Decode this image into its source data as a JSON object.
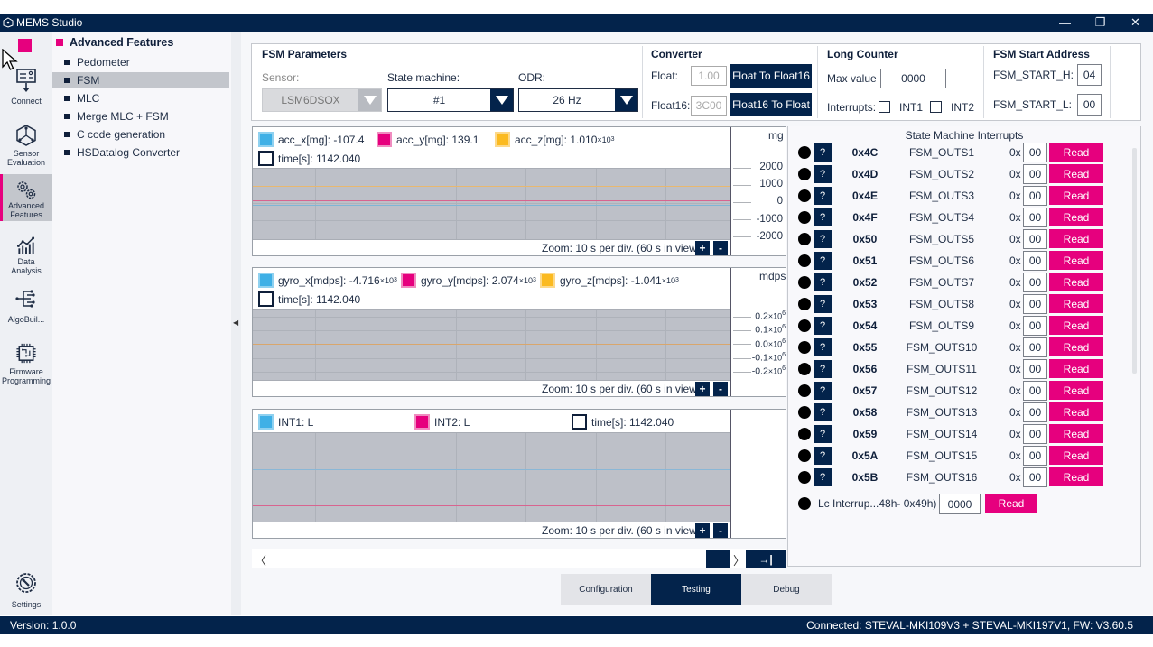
{
  "window": {
    "title": "MEMS Studio",
    "controls": {
      "minimize": "—",
      "restore": "❐",
      "close": "✕"
    }
  },
  "leftnav": {
    "items": [
      {
        "label": "Connect",
        "icon": "connect-icon"
      },
      {
        "label": "Sensor\nEvaluation",
        "label1": "Sensor",
        "label2": "Evaluation",
        "icon": "sensor-evaluation-icon"
      },
      {
        "label1": "Advanced",
        "label2": "Features",
        "icon": "advanced-features-icon",
        "active": true
      },
      {
        "label1": "Data",
        "label2": "Analysis",
        "icon": "data-analysis-icon"
      },
      {
        "label1": "AlgoBuil...",
        "icon": "algobuilder-icon"
      },
      {
        "label1": "Firmware",
        "label2": "Programming",
        "icon": "firmware-icon"
      },
      {
        "label1": "Settings",
        "icon": "settings-icon"
      }
    ]
  },
  "submenu": {
    "title": "Advanced Features",
    "items": [
      "Pedometer",
      "FSM",
      "MLC",
      "Merge MLC + FSM",
      "C code generation",
      "HSDatalog Converter"
    ],
    "selected": "FSM"
  },
  "fsm_parameters": {
    "title": "FSM Parameters",
    "sensor_label": "Sensor:",
    "sensor_value": "LSM6DSOX",
    "state_machine_label": "State machine:",
    "state_machine_value": "#1",
    "odr_label": "ODR:",
    "odr_value": "26 Hz"
  },
  "converter": {
    "title": "Converter",
    "float_label": "Float:",
    "float_value": "1.00",
    "float_to_f16_btn": "Float To Float16",
    "float16_label": "Float16:",
    "float16_value": "3C00",
    "f16_to_float_btn": "Float16 To Float"
  },
  "long_counter": {
    "title": "Long Counter",
    "max_label": "Max value",
    "max_value": "0000",
    "interrupts_label": "Interrupts:",
    "int1_label": "INT1",
    "int2_label": "INT2"
  },
  "fsm_start": {
    "title": "FSM Start Address",
    "h_label": "FSM_START_H:",
    "h_value": "04",
    "l_label": "FSM_START_L:",
    "l_value": "00"
  },
  "plots": {
    "acc": {
      "x_label": "acc_x[mg]: -107.4",
      "y_label": "acc_y[mg]: 139.1",
      "z_label_base": "acc_z[mg]: 1.010",
      "z_label_exp": "3",
      "time_label": "time[s]: 1142.040",
      "unit": "mg",
      "ticks": [
        "2000",
        "1000",
        "0",
        "-1000",
        "-2000"
      ],
      "zoom_text": "Zoom: 10 s per div. (60 s in view)"
    },
    "gyro": {
      "x_label_base": "gyro_x[mdps]: -4.716",
      "y_label_base": "gyro_y[mdps]: 2.074",
      "z_label_base": "gyro_z[mdps]: -1.041",
      "exp": "3",
      "time_label": "time[s]: 1142.040",
      "unit": "mdps",
      "ticks": [
        "0.2",
        "0.1",
        "0.0",
        "-0.1",
        "-0.2"
      ],
      "tick_exp": "6",
      "zoom_text": "Zoom: 10 s per div. (60 s in view)"
    },
    "int": {
      "int1_label": "INT1: L",
      "int2_label": "INT2: L",
      "time_label": "time[s]: 1142.040",
      "zoom_text": "Zoom: 10 s per div. (60 s in view)"
    },
    "zoom_plus": "+",
    "zoom_minus": "-",
    "x10": "×10"
  },
  "scroll": {
    "left": "〈",
    "right": "〉",
    "end": "→|"
  },
  "state_machine_interrupts": {
    "title": "State Machine Interrupts",
    "prefix": "0x",
    "help": "?",
    "read_label": "Read",
    "rows": [
      {
        "addr": "0x4C",
        "name": "FSM_OUTS1",
        "value": "00"
      },
      {
        "addr": "0x4D",
        "name": "FSM_OUTS2",
        "value": "00"
      },
      {
        "addr": "0x4E",
        "name": "FSM_OUTS3",
        "value": "00"
      },
      {
        "addr": "0x4F",
        "name": "FSM_OUTS4",
        "value": "00"
      },
      {
        "addr": "0x50",
        "name": "FSM_OUTS5",
        "value": "00"
      },
      {
        "addr": "0x51",
        "name": "FSM_OUTS6",
        "value": "00"
      },
      {
        "addr": "0x52",
        "name": "FSM_OUTS7",
        "value": "00"
      },
      {
        "addr": "0x53",
        "name": "FSM_OUTS8",
        "value": "00"
      },
      {
        "addr": "0x54",
        "name": "FSM_OUTS9",
        "value": "00"
      },
      {
        "addr": "0x55",
        "name": "FSM_OUTS10",
        "value": "00"
      },
      {
        "addr": "0x56",
        "name": "FSM_OUTS11",
        "value": "00"
      },
      {
        "addr": "0x57",
        "name": "FSM_OUTS12",
        "value": "00"
      },
      {
        "addr": "0x58",
        "name": "FSM_OUTS13",
        "value": "00"
      },
      {
        "addr": "0x59",
        "name": "FSM_OUTS14",
        "value": "00"
      },
      {
        "addr": "0x5A",
        "name": "FSM_OUTS15",
        "value": "00"
      },
      {
        "addr": "0x5B",
        "name": "FSM_OUTS16",
        "value": "00"
      }
    ],
    "lc_label": "Lc Interrup...48h- 0x49h)",
    "lc_value": "0000"
  },
  "tabs": [
    {
      "label": "Configuration"
    },
    {
      "label": "Testing",
      "active": true
    },
    {
      "label": "Debug"
    }
  ],
  "status": {
    "version": "Version: 1.0.0",
    "connection": "Connected:  STEVAL-MKI109V3 + STEVAL-MKI197V1, FW: V3.60.5"
  },
  "colors": {
    "navy": "#03234b",
    "accent_pink": "#e6007e",
    "series_blue": "#3fb0e6",
    "series_yellow": "#fbba20"
  }
}
